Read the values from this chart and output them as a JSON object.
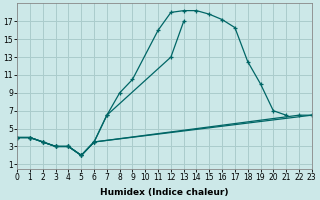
{
  "xlabel": "Humidex (Indice chaleur)",
  "bg_color": "#cce8e8",
  "line_color": "#006666",
  "grid_color": "#aacccc",
  "series_data": [
    {
      "x": [
        0,
        1,
        2,
        3,
        4,
        5,
        6,
        7,
        12,
        13
      ],
      "y": [
        4,
        4,
        3.5,
        3,
        3,
        2,
        3.5,
        6.5,
        13,
        17
      ]
    },
    {
      "x": [
        0,
        1,
        2,
        3,
        4,
        5,
        6,
        7,
        8,
        9,
        11,
        12,
        13,
        14,
        15,
        16,
        17,
        18,
        19,
        20,
        21
      ],
      "y": [
        4,
        4,
        3.5,
        3,
        3,
        2,
        3.5,
        6.5,
        9,
        10.5,
        16,
        18,
        18.2,
        18.2,
        17.8,
        17.2,
        16.3,
        12.5,
        10,
        7,
        6.5
      ]
    },
    {
      "x": [
        0,
        1,
        2,
        3,
        4,
        5,
        6,
        22,
        23
      ],
      "y": [
        4,
        4,
        3.5,
        3,
        3,
        2,
        3.5,
        6.5,
        6.5
      ]
    },
    {
      "x": [
        0,
        1,
        2,
        3,
        4,
        5,
        6,
        23
      ],
      "y": [
        4,
        4,
        3.5,
        3,
        3,
        2,
        3.5,
        6.5
      ]
    }
  ],
  "xlim": [
    0,
    23
  ],
  "ylim": [
    0.5,
    19
  ],
  "xticks": [
    0,
    1,
    2,
    3,
    4,
    5,
    6,
    7,
    8,
    9,
    10,
    11,
    12,
    13,
    14,
    15,
    16,
    17,
    18,
    19,
    20,
    21,
    22,
    23
  ],
  "yticks": [
    1,
    3,
    5,
    7,
    9,
    11,
    13,
    15,
    17
  ],
  "label_fontsize": 6.5,
  "tick_fontsize": 5.5
}
